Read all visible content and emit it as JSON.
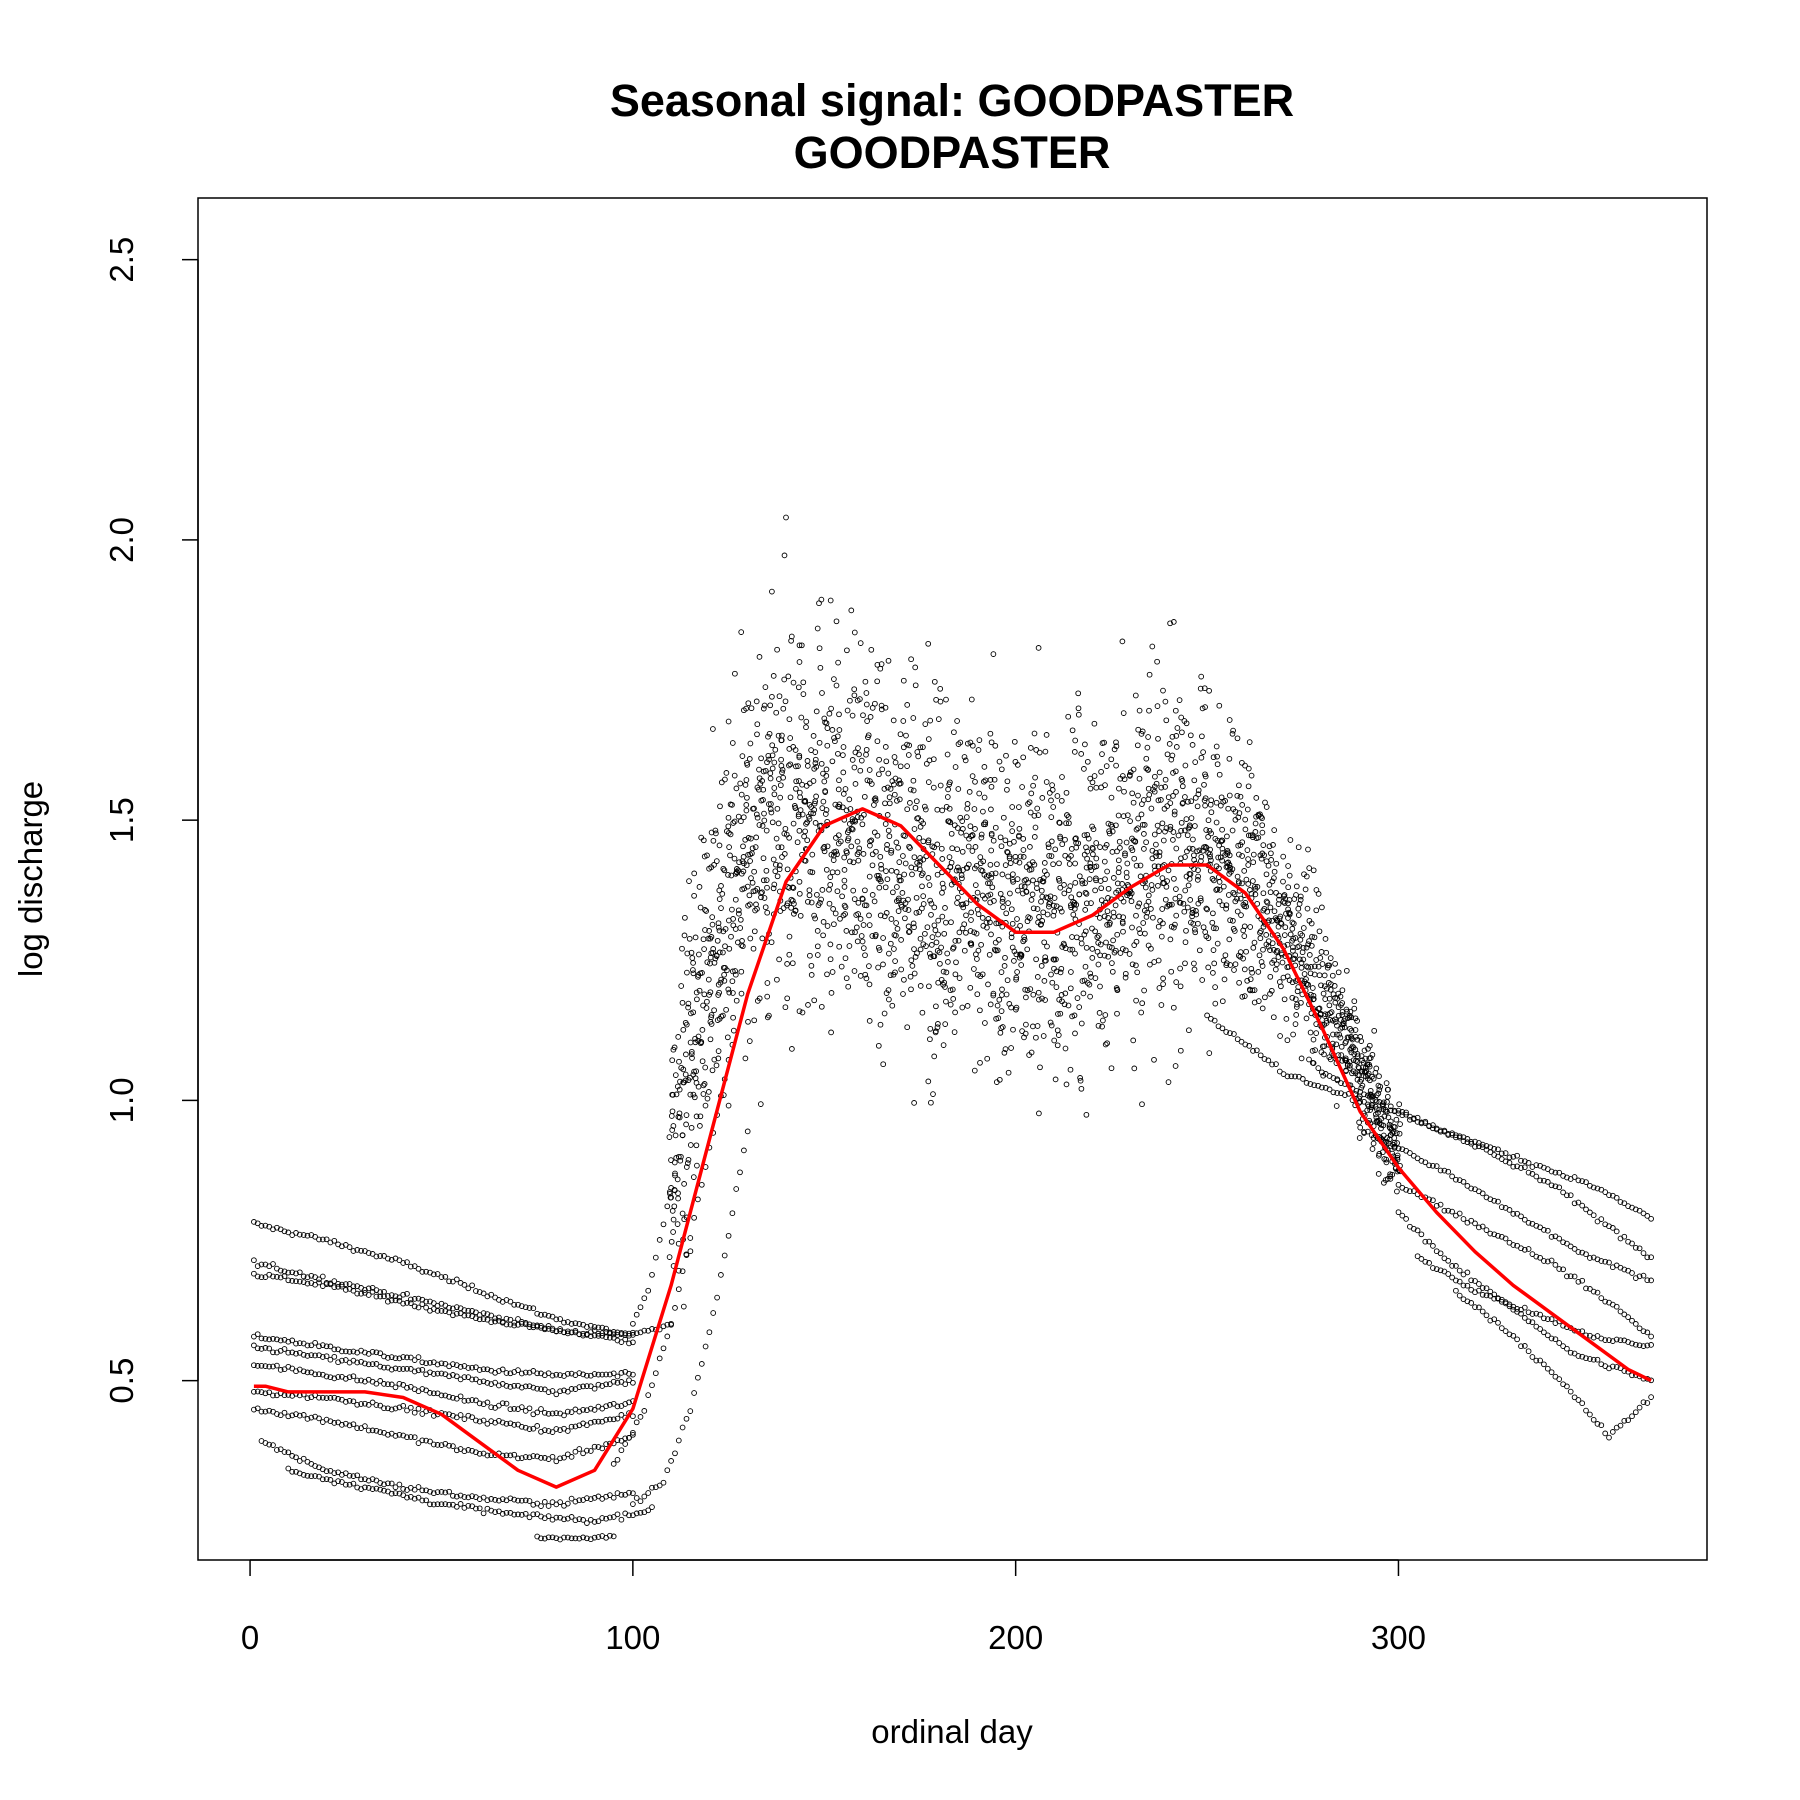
{
  "chart_data": {
    "type": "scatter",
    "title": "Seasonal signal: GOODPASTER",
    "subtitle": "GOODPASTER",
    "xlabel": "ordinal day",
    "ylabel": "log discharge",
    "xlim": [
      -13.6,
      380.6
    ],
    "ylim": [
      0.18,
      2.61
    ],
    "xticks": [
      0,
      100,
      200,
      300
    ],
    "yticks": [
      0.5,
      1.0,
      1.5,
      2.0,
      2.5
    ],
    "xtick_labels": [
      "0",
      "100",
      "200",
      "300"
    ],
    "ytick_labels": [
      "0.5",
      "1.0",
      "1.5",
      "2.0",
      "2.5"
    ],
    "grid": false,
    "colors": {
      "points": "#000000",
      "smooth": "#ff0000",
      "frame": "#000000"
    },
    "point_cloud_note_free": true,
    "smooth_curve": {
      "x": [
        1,
        4,
        10,
        20,
        30,
        40,
        50,
        60,
        70,
        80,
        90,
        100,
        110,
        120,
        130,
        140,
        150,
        160,
        170,
        180,
        190,
        200,
        210,
        220,
        230,
        240,
        250,
        260,
        270,
        280,
        290,
        300,
        310,
        320,
        330,
        340,
        350,
        360,
        366
      ],
      "y": [
        0.49,
        0.49,
        0.48,
        0.48,
        0.48,
        0.47,
        0.44,
        0.39,
        0.34,
        0.31,
        0.34,
        0.45,
        0.67,
        0.93,
        1.19,
        1.39,
        1.49,
        1.52,
        1.49,
        1.42,
        1.35,
        1.3,
        1.3,
        1.33,
        1.38,
        1.42,
        1.42,
        1.37,
        1.27,
        1.13,
        0.98,
        0.88,
        0.8,
        0.73,
        0.67,
        0.62,
        0.57,
        0.52,
        0.5
      ]
    },
    "trace_lines": [
      {
        "x": [
          1,
          20,
          40,
          60,
          80,
          100,
          110
        ],
        "y": [
          0.78,
          0.75,
          0.71,
          0.66,
          0.61,
          0.58,
          0.6
        ]
      },
      {
        "x": [
          1,
          20,
          40,
          60,
          80,
          100
        ],
        "y": [
          0.71,
          0.68,
          0.65,
          0.62,
          0.59,
          0.57
        ]
      },
      {
        "x": [
          1,
          20,
          40,
          60,
          80,
          100
        ],
        "y": [
          0.69,
          0.67,
          0.64,
          0.61,
          0.59,
          0.58
        ]
      },
      {
        "x": [
          1,
          20,
          40,
          60,
          80,
          100
        ],
        "y": [
          0.58,
          0.56,
          0.54,
          0.52,
          0.51,
          0.51
        ]
      },
      {
        "x": [
          1,
          20,
          40,
          60,
          80,
          100
        ],
        "y": [
          0.56,
          0.54,
          0.52,
          0.5,
          0.48,
          0.5
        ]
      },
      {
        "x": [
          1,
          20,
          40,
          60,
          80,
          100
        ],
        "y": [
          0.53,
          0.51,
          0.49,
          0.46,
          0.44,
          0.46
        ]
      },
      {
        "x": [
          1,
          20,
          40,
          60,
          80,
          100
        ],
        "y": [
          0.48,
          0.47,
          0.45,
          0.43,
          0.41,
          0.44
        ]
      },
      {
        "x": [
          1,
          20,
          40,
          60,
          80,
          100
        ],
        "y": [
          0.45,
          0.43,
          0.4,
          0.37,
          0.36,
          0.4
        ]
      },
      {
        "x": [
          3,
          20,
          40,
          60,
          80,
          100
        ],
        "y": [
          0.39,
          0.34,
          0.31,
          0.29,
          0.28,
          0.3
        ]
      },
      {
        "x": [
          10,
          30,
          50,
          70,
          90,
          105
        ],
        "y": [
          0.34,
          0.31,
          0.28,
          0.26,
          0.25,
          0.27
        ]
      },
      {
        "x": [
          75,
          85,
          95
        ],
        "y": [
          0.22,
          0.22,
          0.22
        ]
      },
      {
        "x": [
          100,
          104,
          108,
          112,
          116
        ],
        "y": [
          0.6,
          0.66,
          0.78,
          0.9,
          1.05
        ]
      },
      {
        "x": [
          95,
          103,
          110,
          118,
          126
        ],
        "y": [
          0.35,
          0.45,
          0.6,
          0.85,
          1.1
        ]
      },
      {
        "x": [
          100,
          108,
          115,
          122,
          130
        ],
        "y": [
          0.28,
          0.32,
          0.45,
          0.65,
          0.95
        ]
      },
      {
        "x": [
          250,
          270,
          290,
          310,
          330,
          350,
          366
        ],
        "y": [
          1.15,
          1.05,
          1.0,
          0.95,
          0.9,
          0.85,
          0.79
        ]
      },
      {
        "x": [
          280,
          300,
          320,
          340,
          366
        ],
        "y": [
          1.05,
          0.98,
          0.92,
          0.85,
          0.72
        ]
      },
      {
        "x": [
          290,
          310,
          330,
          350,
          366
        ],
        "y": [
          0.95,
          0.88,
          0.8,
          0.72,
          0.68
        ]
      },
      {
        "x": [
          300,
          320,
          340,
          355,
          366
        ],
        "y": [
          0.85,
          0.78,
          0.71,
          0.64,
          0.58
        ]
      },
      {
        "x": [
          305,
          320,
          335,
          350,
          366
        ],
        "y": [
          0.72,
          0.66,
          0.62,
          0.58,
          0.56
        ]
      },
      {
        "x": [
          315,
          330,
          345,
          355,
          366
        ],
        "y": [
          0.66,
          0.58,
          0.48,
          0.4,
          0.47
        ]
      },
      {
        "x": [
          300,
          315,
          330,
          345,
          366
        ],
        "y": [
          0.8,
          0.7,
          0.63,
          0.55,
          0.5
        ]
      }
    ],
    "cloud_envelope": {
      "x": [
        110,
        120,
        130,
        140,
        150,
        160,
        170,
        180,
        190,
        200,
        210,
        220,
        230,
        240,
        250,
        260,
        270,
        280,
        290,
        300
      ],
      "center": [
        0.9,
        1.25,
        1.45,
        1.5,
        1.5,
        1.48,
        1.45,
        1.4,
        1.38,
        1.35,
        1.35,
        1.38,
        1.42,
        1.45,
        1.45,
        1.4,
        1.32,
        1.2,
        1.05,
        0.9
      ],
      "spread": [
        0.3,
        0.35,
        0.38,
        0.38,
        0.36,
        0.36,
        0.38,
        0.38,
        0.36,
        0.34,
        0.34,
        0.34,
        0.34,
        0.34,
        0.3,
        0.26,
        0.2,
        0.16,
        0.12,
        0.1
      ]
    }
  }
}
